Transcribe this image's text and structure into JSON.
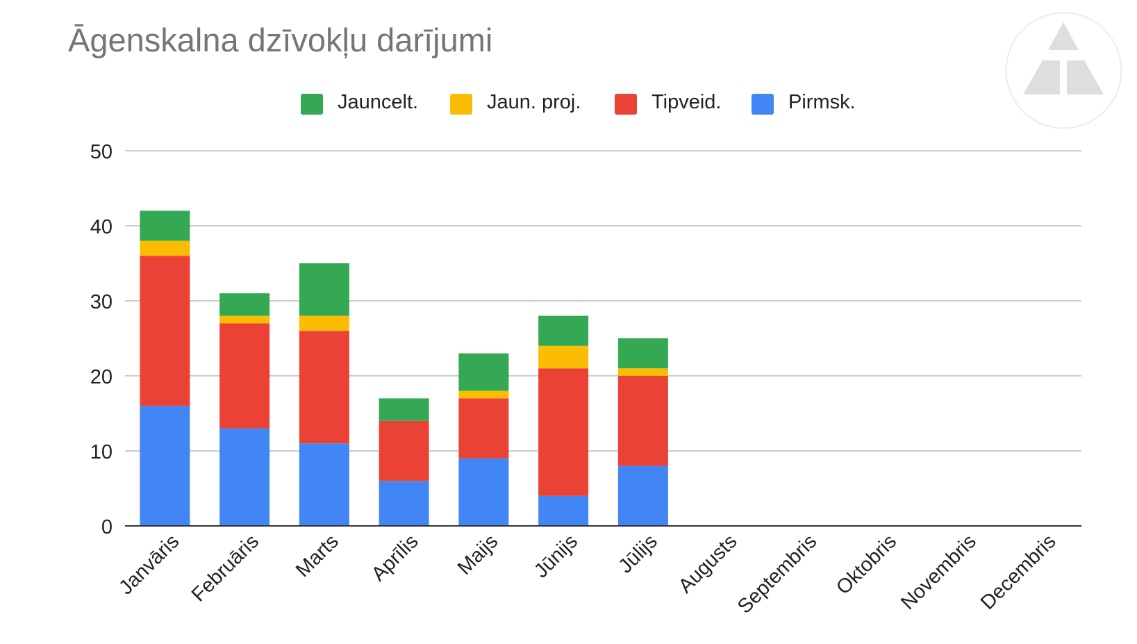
{
  "title": "Āgenskalna dzīvokļu darījumi",
  "chart_data": {
    "type": "bar",
    "stacked": true,
    "title": "Āgenskalna dzīvokļu darījumi",
    "xlabel": "",
    "ylabel": "",
    "ylim": [
      0,
      50
    ],
    "yticks": [
      0,
      10,
      20,
      30,
      40,
      50
    ],
    "grid": true,
    "legend_position": "top",
    "categories": [
      "Janvāris",
      "Februāris",
      "Marts",
      "Aprīlis",
      "Maijs",
      "Jūnijs",
      "Jūlijs",
      "Augusts",
      "Septembris",
      "Oktobris",
      "Novembris",
      "Decembris"
    ],
    "series": [
      {
        "name": "Pirmsk.",
        "color": "#4285f4",
        "values": [
          16,
          13,
          11,
          6,
          9,
          4,
          8,
          0,
          0,
          0,
          0,
          0
        ]
      },
      {
        "name": "Tipveid.",
        "color": "#ea4335",
        "values": [
          20,
          14,
          15,
          8,
          8,
          17,
          12,
          0,
          0,
          0,
          0,
          0
        ]
      },
      {
        "name": "Jaun. proj.",
        "color": "#fbbc04",
        "values": [
          2,
          1,
          2,
          0,
          1,
          3,
          1,
          0,
          0,
          0,
          0,
          0
        ]
      },
      {
        "name": "Jauncelt.",
        "color": "#34a853",
        "values": [
          4,
          3,
          7,
          3,
          5,
          4,
          4,
          0,
          0,
          0,
          0,
          0
        ]
      }
    ],
    "legend_order": [
      "Jauncelt.",
      "Jaun. proj.",
      "Tipveid.",
      "Pirmsk."
    ]
  },
  "logo": {
    "icon": "triangle-logo-icon"
  }
}
